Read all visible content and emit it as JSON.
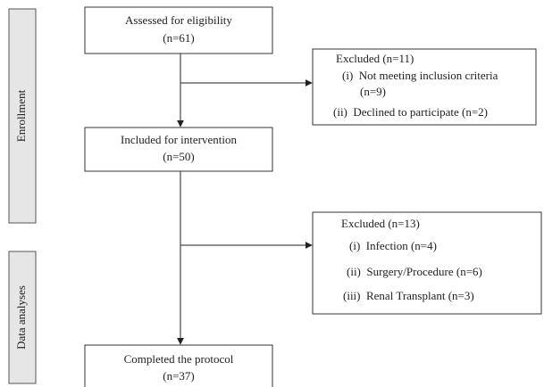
{
  "side_labels": [
    "Enrollment",
    "Data analyses"
  ],
  "boxes": [
    {
      "lines": [
        "Assessed for eligibility",
        "(n=61)"
      ]
    },
    {
      "lines": [
        "Included for intervention",
        "(n=50)"
      ]
    },
    {
      "lines": [
        "Completed the protocol",
        "(n=37)"
      ]
    }
  ],
  "excluded": [
    {
      "title": "Excluded (n=11)",
      "lines": [
        "(i)  Not meeting inclusion criteria",
        "(n=9)",
        "(ii)  Declined to participate (n=2)"
      ]
    },
    {
      "title": "Excluded (n=13)",
      "lines": [
        "(i)  Infection (n=4)",
        "(ii)  Surgery/Procedure (n=6)",
        "(iii)  Renal Transplant (n=3)"
      ]
    }
  ]
}
